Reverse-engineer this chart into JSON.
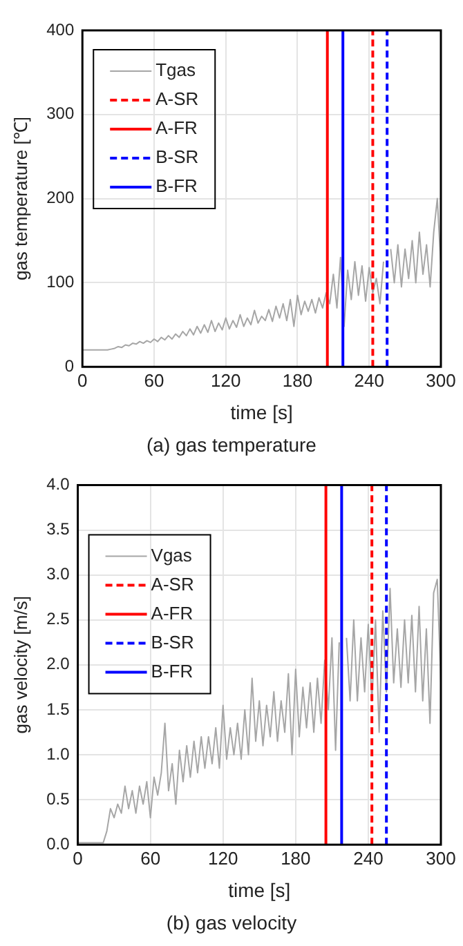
{
  "chart_data": [
    {
      "type": "line",
      "xlabel": "time [s]",
      "ylabel": "gas temperature [℃]",
      "annotations": [
        "(a) gas temperature"
      ],
      "xlim": [
        0,
        300
      ],
      "xticks": [
        0,
        60,
        120,
        180,
        240,
        300
      ],
      "ylim": [
        0,
        400
      ],
      "yticks": [
        0,
        100,
        200,
        300,
        400
      ],
      "grid": true,
      "legend": "top left",
      "marker": "none",
      "x": [
        0,
        3,
        6,
        9,
        12,
        15,
        18,
        21,
        24,
        27,
        30,
        33,
        36,
        39,
        42,
        45,
        48,
        51,
        54,
        57,
        60,
        63,
        66,
        69,
        72,
        75,
        78,
        81,
        84,
        87,
        90,
        93,
        96,
        99,
        102,
        105,
        108,
        111,
        114,
        117,
        120,
        123,
        126,
        129,
        132,
        135,
        138,
        141,
        144,
        147,
        150,
        153,
        156,
        159,
        162,
        165,
        168,
        171,
        174,
        177,
        180,
        183,
        186,
        189,
        192,
        195,
        198,
        201,
        204,
        207,
        210,
        213,
        216,
        219,
        222,
        225,
        228,
        231,
        234,
        237,
        240,
        243,
        246,
        249,
        252,
        255,
        258,
        261,
        264,
        267,
        270,
        273,
        276,
        279,
        282,
        285,
        288,
        291,
        294,
        297,
        300
      ],
      "series": [
        {
          "name": "Tgas",
          "color": "#a6a6a6",
          "values": [
            20,
            20,
            20,
            20,
            20,
            20,
            20,
            20,
            21,
            22,
            24,
            23,
            26,
            25,
            28,
            27,
            30,
            28,
            31,
            29,
            33,
            30,
            35,
            32,
            37,
            33,
            39,
            35,
            42,
            37,
            45,
            38,
            48,
            40,
            50,
            41,
            55,
            42,
            52,
            44,
            58,
            45,
            55,
            47,
            62,
            48,
            58,
            50,
            67,
            52,
            60,
            55,
            68,
            54,
            72,
            58,
            75,
            55,
            80,
            48,
            85,
            62,
            78,
            66,
            80,
            64,
            82,
            70,
            88,
            75,
            110,
            70,
            130,
            48,
            115,
            80,
            125,
            85,
            120,
            78,
            118,
            88,
            105,
            75,
            125,
            null,
            140,
            100,
            145,
            95,
            140,
            105,
            150,
            100,
            160,
            110,
            145,
            95,
            160,
            200,
            120
          ]
        },
        {
          "name": "A-SR",
          "color": "#ff0000",
          "line_style": "dashed",
          "x": [
            243,
            243
          ],
          "values": [
            0,
            400
          ]
        },
        {
          "name": "A-FR",
          "color": "#ff0000",
          "line_style": "solid",
          "x": [
            205,
            205
          ],
          "values": [
            0,
            400
          ]
        },
        {
          "name": "B-SR",
          "color": "#0000ff",
          "line_style": "dashed",
          "x": [
            255,
            255
          ],
          "values": [
            0,
            400
          ]
        },
        {
          "name": "B-FR",
          "color": "#0000ff",
          "line_style": "solid",
          "x": [
            218,
            218
          ],
          "values": [
            0,
            400
          ]
        }
      ]
    },
    {
      "type": "line",
      "xlabel": "time [s]",
      "ylabel": "gas velocity [m/s]",
      "annotations": [
        "(b) gas velocity"
      ],
      "xlim": [
        0,
        300
      ],
      "xticks": [
        0,
        60,
        120,
        180,
        240,
        300
      ],
      "ylim": [
        0,
        4
      ],
      "yticks": [
        {
          "value": 0,
          "label": "0.0"
        },
        0.5,
        {
          "value": 1,
          "label": "1.0"
        },
        1.5,
        {
          "value": 2,
          "label": "2.0"
        },
        2.5,
        {
          "value": 3,
          "label": "3.0"
        },
        3.5,
        {
          "value": 4,
          "label": "4.0"
        }
      ],
      "grid": true,
      "legend": "top left",
      "marker": "none",
      "x": [
        0,
        3,
        6,
        9,
        12,
        15,
        18,
        21,
        24,
        27,
        30,
        33,
        36,
        39,
        42,
        45,
        48,
        51,
        54,
        57,
        60,
        63,
        66,
        69,
        72,
        75,
        78,
        81,
        84,
        87,
        90,
        93,
        96,
        99,
        102,
        105,
        108,
        111,
        114,
        117,
        120,
        123,
        126,
        129,
        132,
        135,
        138,
        141,
        144,
        147,
        150,
        153,
        156,
        159,
        162,
        165,
        168,
        171,
        174,
        177,
        180,
        183,
        186,
        189,
        192,
        195,
        198,
        201,
        204,
        207,
        210,
        213,
        216,
        219,
        222,
        225,
        228,
        231,
        234,
        237,
        240,
        243,
        246,
        249,
        252,
        255,
        258,
        261,
        264,
        267,
        270,
        273,
        276,
        279,
        282,
        285,
        288,
        291,
        294,
        297,
        300
      ],
      "series": [
        {
          "name": "Vgas",
          "color": "#a6a6a6",
          "values": [
            0.02,
            0.02,
            0.02,
            0.02,
            0.02,
            0.02,
            0.02,
            0.02,
            0.15,
            0.4,
            0.3,
            0.45,
            0.35,
            0.65,
            0.4,
            0.6,
            0.35,
            0.65,
            0.45,
            0.7,
            0.3,
            0.75,
            0.55,
            0.8,
            1.35,
            0.6,
            0.9,
            0.45,
            1.05,
            0.7,
            1.1,
            0.75,
            1.15,
            0.8,
            1.2,
            0.85,
            1.2,
            0.9,
            1.3,
            0.85,
            1.55,
            0.95,
            1.3,
            1.0,
            1.35,
            0.95,
            1.5,
            1.0,
            1.85,
            1.15,
            1.6,
            1.1,
            1.55,
            1.2,
            1.7,
            1.15,
            1.6,
            1.25,
            1.9,
            1.0,
            1.95,
            1.2,
            1.75,
            1.3,
            1.8,
            1.25,
            1.85,
            1.35,
            2.05,
            1.5,
            2.3,
            1.05,
            2.25,
            null,
            2.3,
            1.6,
            2.5,
            1.6,
            2.3,
            1.7,
            2.45,
            1.6,
            2.5,
            1.25,
            2.6,
            1.7,
            2.85,
            1.8,
            2.4,
            1.75,
            2.5,
            1.8,
            2.55,
            1.7,
            2.65,
            1.6,
            2.4,
            1.35,
            2.8,
            2.95,
            1.8
          ]
        },
        {
          "name": "A-SR",
          "color": "#ff0000",
          "line_style": "dashed",
          "x": [
            243,
            243
          ],
          "values": [
            0,
            4
          ]
        },
        {
          "name": "A-FR",
          "color": "#ff0000",
          "line_style": "solid",
          "x": [
            205,
            205
          ],
          "values": [
            0,
            4
          ]
        },
        {
          "name": "B-SR",
          "color": "#0000ff",
          "line_style": "dashed",
          "x": [
            255,
            255
          ],
          "values": [
            0,
            4
          ]
        },
        {
          "name": "B-FR",
          "color": "#0000ff",
          "line_style": "solid",
          "x": [
            218,
            218
          ],
          "values": [
            0,
            4
          ]
        }
      ]
    }
  ]
}
